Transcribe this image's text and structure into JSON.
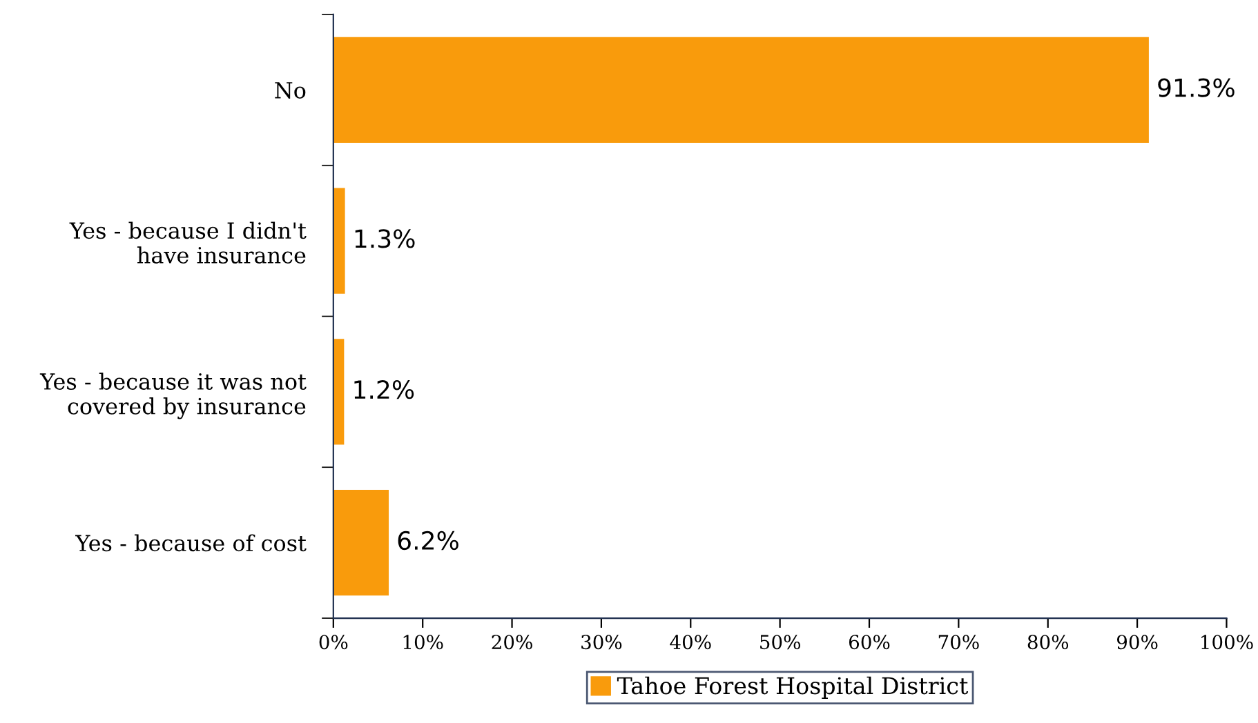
{
  "chart_data": {
    "type": "bar",
    "orientation": "horizontal",
    "categories": [
      "No",
      "Yes - because I didn't\nhave insurance",
      "Yes - because it was not\ncovered by insurance",
      "Yes - because of cost"
    ],
    "series": [
      {
        "name": "Tahoe Forest Hospital District",
        "color": "#f99b0c",
        "values": [
          91.3,
          1.3,
          1.2,
          6.2
        ]
      }
    ],
    "value_labels": [
      "91.3%",
      "1.3%",
      "1.2%",
      "6.2%"
    ],
    "xlim": [
      0,
      100
    ],
    "xticks": [
      {
        "value": 0,
        "label": "0%"
      },
      {
        "value": 10,
        "label": "10%"
      },
      {
        "value": 20,
        "label": "20%"
      },
      {
        "value": 30,
        "label": "30%"
      },
      {
        "value": 40,
        "label": "40%"
      },
      {
        "value": 50,
        "label": "50%"
      },
      {
        "value": 60,
        "label": "60%"
      },
      {
        "value": 70,
        "label": "70%"
      },
      {
        "value": 80,
        "label": "80%"
      },
      {
        "value": 90,
        "label": "90%"
      },
      {
        "value": 100,
        "label": "100%"
      }
    ],
    "grid": false,
    "legend": "bottom"
  }
}
